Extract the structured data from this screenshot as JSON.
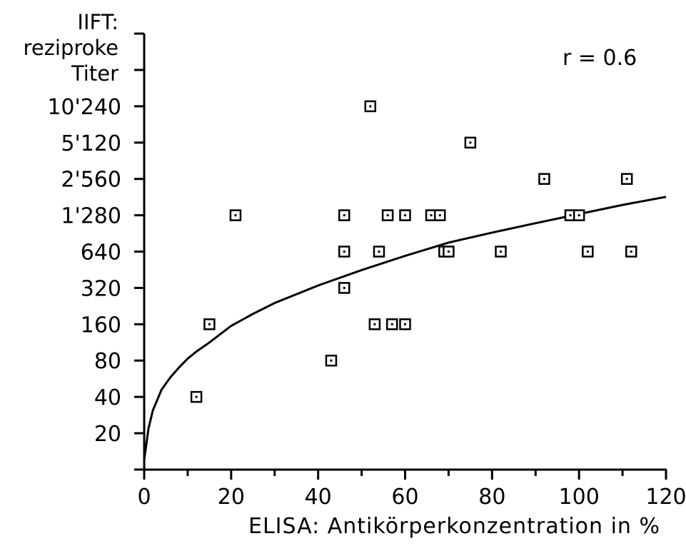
{
  "chart_data": {
    "type": "scatter",
    "ylabel_lines": [
      "IIFT:",
      "reziproke",
      "Titer"
    ],
    "xlabel": "ELISA: Antikörperkonzentration in %",
    "annotation": "r = 0.6",
    "xlim": [
      0,
      120
    ],
    "xticks": [
      0,
      20,
      40,
      60,
      80,
      100,
      120
    ],
    "x_tick_labels": [
      "0",
      "20",
      "40",
      "60",
      "80",
      "100",
      "120"
    ],
    "y_scale": "log2",
    "y_tick_values": [
      20,
      40,
      80,
      160,
      320,
      640,
      1280,
      2560,
      5120,
      10240
    ],
    "y_tick_labels": [
      "20",
      "40",
      "80",
      "160",
      "320",
      "640",
      "1'280",
      "2'560",
      "5'120",
      "10'240"
    ],
    "series": [
      {
        "x": [
          12,
          15,
          21,
          43,
          46,
          46,
          46,
          52,
          53,
          54,
          56,
          57,
          60,
          60,
          66,
          68,
          69,
          70,
          75,
          82,
          92,
          98,
          100,
          102,
          111,
          112
        ],
        "y": [
          40,
          160,
          1280,
          80,
          1280,
          640,
          320,
          10240,
          160,
          640,
          1280,
          160,
          1280,
          160,
          1280,
          1280,
          640,
          640,
          5120,
          640,
          2560,
          1280,
          1280,
          640,
          2560,
          640
        ]
      }
    ],
    "fit_curve": {
      "x": [
        0,
        1,
        2,
        4,
        6,
        8,
        10,
        12,
        15,
        20,
        25,
        30,
        40,
        50,
        60,
        70,
        80,
        90,
        100,
        110,
        120
      ],
      "y": [
        12,
        22,
        31,
        46,
        58,
        70,
        83,
        95,
        113,
        155,
        195,
        240,
        335,
        450,
        590,
        760,
        920,
        1100,
        1310,
        1560,
        1820
      ]
    }
  }
}
